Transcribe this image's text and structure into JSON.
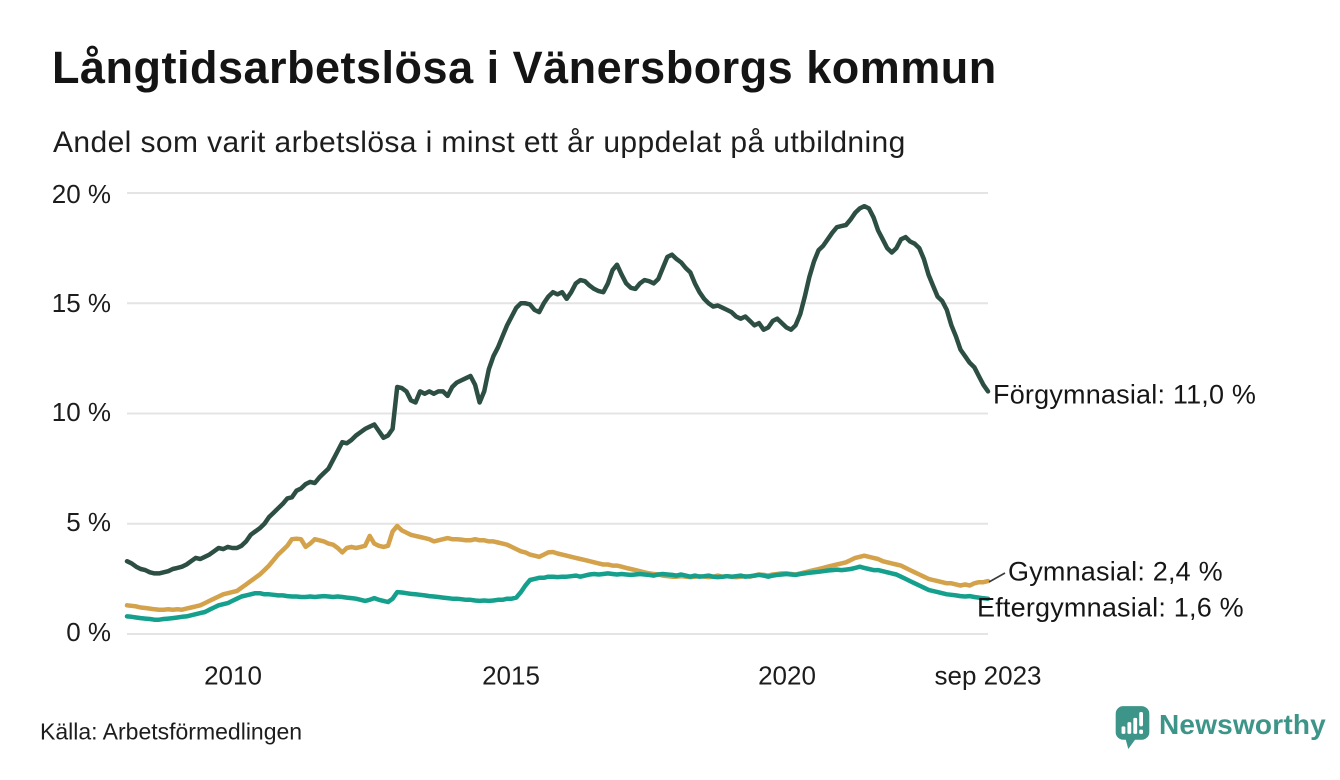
{
  "title": "Långtidsarbetslösa i Vänersborgs kommun",
  "subtitle": "Andel som varit arbetslösa i minst ett år uppdelat på utbildning",
  "source": "Källa: Arbetsförmedlingen",
  "branding": {
    "name": "Newsworthy",
    "icon": "speech-bubble-bar-chart-icon",
    "color": "#3d9488"
  },
  "chart_data": {
    "type": "line",
    "title": "Långtidsarbetslösa i Vänersborgs kommun",
    "subtitle": "Andel som varit arbetslösa i minst ett år uppdelat på utbildning",
    "x_unit": "month",
    "x_start": "2008-01",
    "x_end": "2023-09",
    "x_tick_labels": [
      "2010",
      "2015",
      "2020",
      "sep 2023"
    ],
    "y_tick_labels": [
      "0 %",
      "5 %",
      "10 %",
      "15 %",
      "20 %"
    ],
    "y_tick_values": [
      0,
      5,
      10,
      15,
      20
    ],
    "ylim": [
      0,
      20.5
    ],
    "grid": true,
    "legend_position": "end-of-line-labels",
    "grid_color": "#e4e4e4",
    "series": [
      {
        "name": "Förgymnasial",
        "color": "#2d4f43",
        "end_label": "Förgymnasial: 11,0 %",
        "last_value": 11.0,
        "values": [
          3.3,
          3.2,
          3.05,
          2.95,
          2.9,
          2.8,
          2.75,
          2.75,
          2.8,
          2.85,
          2.95,
          3.0,
          3.05,
          3.15,
          3.3,
          3.45,
          3.4,
          3.5,
          3.6,
          3.75,
          3.9,
          3.85,
          3.95,
          3.9,
          3.9,
          4.0,
          4.2,
          4.5,
          4.65,
          4.8,
          5.0,
          5.3,
          5.5,
          5.7,
          5.9,
          6.15,
          6.2,
          6.5,
          6.6,
          6.8,
          6.9,
          6.85,
          7.1,
          7.3,
          7.5,
          7.9,
          8.3,
          8.7,
          8.65,
          8.8,
          9.0,
          9.15,
          9.3,
          9.4,
          9.5,
          9.2,
          8.9,
          9.0,
          9.3,
          11.2,
          11.15,
          11.0,
          10.6,
          10.5,
          11.0,
          10.9,
          11.0,
          10.9,
          11.0,
          11.0,
          10.8,
          11.2,
          11.4,
          11.5,
          11.6,
          11.7,
          11.3,
          10.5,
          11.0,
          12.0,
          12.6,
          13.0,
          13.5,
          14.0,
          14.4,
          14.8,
          15.0,
          15.0,
          14.95,
          14.7,
          14.6,
          15.0,
          15.3,
          15.5,
          15.4,
          15.5,
          15.2,
          15.5,
          15.9,
          16.05,
          16.0,
          15.8,
          15.65,
          15.55,
          15.5,
          15.9,
          16.5,
          16.75,
          16.3,
          15.9,
          15.7,
          15.65,
          15.9,
          16.05,
          16.0,
          15.9,
          16.1,
          16.6,
          17.1,
          17.2,
          17.0,
          16.85,
          16.6,
          16.4,
          15.9,
          15.5,
          15.2,
          15.0,
          14.85,
          14.9,
          14.8,
          14.7,
          14.6,
          14.4,
          14.3,
          14.4,
          14.2,
          14.0,
          14.1,
          13.8,
          13.9,
          14.2,
          14.3,
          14.1,
          13.9,
          13.8,
          14.0,
          14.5,
          15.3,
          16.2,
          16.9,
          17.4,
          17.6,
          17.9,
          18.2,
          18.45,
          18.5,
          18.55,
          18.8,
          19.1,
          19.3,
          19.4,
          19.3,
          18.9,
          18.3,
          17.9,
          17.5,
          17.3,
          17.5,
          17.9,
          18.0,
          17.8,
          17.7,
          17.5,
          17.0,
          16.3,
          15.8,
          15.3,
          15.1,
          14.7,
          14.0,
          13.5,
          12.9,
          12.6,
          12.3,
          12.1,
          11.7,
          11.3,
          11.0
        ]
      },
      {
        "name": "Gymnasial",
        "color": "#d3a24b",
        "end_label": "Gymnasial:  2,4 %",
        "last_value": 2.4,
        "values": [
          1.3,
          1.28,
          1.25,
          1.2,
          1.18,
          1.15,
          1.12,
          1.1,
          1.1,
          1.12,
          1.1,
          1.12,
          1.1,
          1.15,
          1.2,
          1.25,
          1.3,
          1.4,
          1.5,
          1.6,
          1.7,
          1.8,
          1.85,
          1.9,
          1.95,
          2.1,
          2.25,
          2.4,
          2.55,
          2.7,
          2.9,
          3.1,
          3.35,
          3.6,
          3.8,
          4.0,
          4.3,
          4.32,
          4.3,
          3.95,
          4.1,
          4.3,
          4.25,
          4.2,
          4.1,
          4.05,
          3.9,
          3.7,
          3.9,
          3.95,
          3.9,
          3.95,
          4.0,
          4.45,
          4.1,
          4.0,
          3.95,
          4.0,
          4.65,
          4.9,
          4.7,
          4.6,
          4.5,
          4.45,
          4.4,
          4.35,
          4.3,
          4.2,
          4.25,
          4.3,
          4.35,
          4.3,
          4.3,
          4.28,
          4.25,
          4.25,
          4.3,
          4.25,
          4.25,
          4.2,
          4.2,
          4.15,
          4.1,
          4.05,
          3.95,
          3.85,
          3.75,
          3.7,
          3.6,
          3.55,
          3.5,
          3.6,
          3.7,
          3.72,
          3.65,
          3.6,
          3.55,
          3.5,
          3.45,
          3.4,
          3.35,
          3.3,
          3.25,
          3.2,
          3.15,
          3.15,
          3.1,
          3.1,
          3.05,
          3.0,
          2.95,
          2.9,
          2.85,
          2.8,
          2.75,
          2.72,
          2.7,
          2.65,
          2.62,
          2.6,
          2.6,
          2.62,
          2.6,
          2.58,
          2.6,
          2.62,
          2.6,
          2.58,
          2.6,
          2.65,
          2.6,
          2.62,
          2.6,
          2.58,
          2.6,
          2.62,
          2.6,
          2.65,
          2.7,
          2.68,
          2.65,
          2.7,
          2.72,
          2.75,
          2.75,
          2.72,
          2.7,
          2.75,
          2.8,
          2.85,
          2.9,
          2.95,
          3.0,
          3.05,
          3.1,
          3.15,
          3.2,
          3.25,
          3.35,
          3.45,
          3.5,
          3.55,
          3.5,
          3.45,
          3.4,
          3.3,
          3.25,
          3.2,
          3.15,
          3.1,
          3.0,
          2.9,
          2.8,
          2.7,
          2.6,
          2.5,
          2.45,
          2.4,
          2.35,
          2.3,
          2.3,
          2.25,
          2.2,
          2.25,
          2.2,
          2.3,
          2.35,
          2.35,
          2.4
        ]
      },
      {
        "name": "Eftergymnasial",
        "color": "#14a08c",
        "end_label": "Eftergymnasial:  1,6 %",
        "last_value": 1.6,
        "values": [
          0.8,
          0.78,
          0.75,
          0.72,
          0.7,
          0.68,
          0.65,
          0.65,
          0.68,
          0.7,
          0.72,
          0.75,
          0.78,
          0.8,
          0.85,
          0.9,
          0.95,
          1.0,
          1.1,
          1.2,
          1.3,
          1.35,
          1.4,
          1.5,
          1.6,
          1.7,
          1.75,
          1.8,
          1.85,
          1.85,
          1.8,
          1.8,
          1.78,
          1.75,
          1.75,
          1.72,
          1.7,
          1.7,
          1.68,
          1.68,
          1.7,
          1.68,
          1.7,
          1.72,
          1.7,
          1.68,
          1.7,
          1.68,
          1.65,
          1.63,
          1.6,
          1.55,
          1.5,
          1.55,
          1.63,
          1.55,
          1.5,
          1.45,
          1.6,
          1.9,
          1.88,
          1.85,
          1.82,
          1.8,
          1.78,
          1.75,
          1.72,
          1.7,
          1.68,
          1.65,
          1.63,
          1.6,
          1.6,
          1.58,
          1.55,
          1.55,
          1.52,
          1.5,
          1.52,
          1.5,
          1.52,
          1.55,
          1.55,
          1.6,
          1.6,
          1.65,
          1.9,
          2.2,
          2.45,
          2.5,
          2.55,
          2.55,
          2.6,
          2.6,
          2.58,
          2.6,
          2.6,
          2.62,
          2.65,
          2.6,
          2.65,
          2.7,
          2.72,
          2.7,
          2.72,
          2.75,
          2.72,
          2.7,
          2.72,
          2.7,
          2.68,
          2.7,
          2.72,
          2.7,
          2.68,
          2.65,
          2.7,
          2.72,
          2.7,
          2.68,
          2.65,
          2.7,
          2.65,
          2.6,
          2.65,
          2.6,
          2.62,
          2.65,
          2.6,
          2.58,
          2.6,
          2.62,
          2.6,
          2.62,
          2.65,
          2.6,
          2.62,
          2.65,
          2.68,
          2.65,
          2.6,
          2.65,
          2.68,
          2.7,
          2.72,
          2.7,
          2.68,
          2.72,
          2.75,
          2.78,
          2.8,
          2.82,
          2.85,
          2.88,
          2.9,
          2.92,
          2.9,
          2.92,
          2.95,
          3.0,
          3.05,
          3.0,
          2.95,
          2.9,
          2.9,
          2.85,
          2.8,
          2.75,
          2.7,
          2.6,
          2.5,
          2.4,
          2.3,
          2.2,
          2.1,
          2.0,
          1.95,
          1.9,
          1.85,
          1.8,
          1.78,
          1.75,
          1.72,
          1.7,
          1.72,
          1.68,
          1.65,
          1.62,
          1.6
        ]
      }
    ]
  }
}
